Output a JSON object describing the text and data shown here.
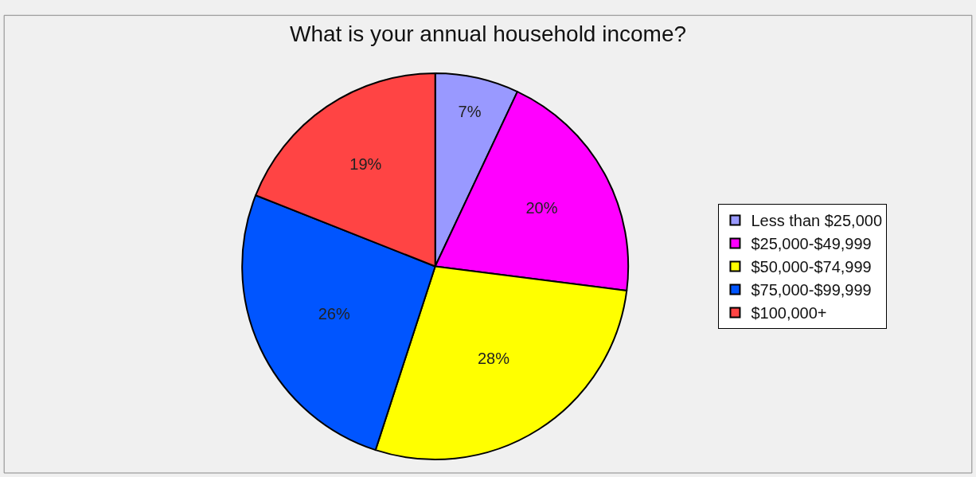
{
  "chart_data": {
    "type": "pie",
    "title": "What is your annual household income?",
    "categories": [
      "Less than $25,000",
      "$25,000-$49,999",
      "$50,000-$74,999",
      "$75,000-$99,999",
      "$100,000+"
    ],
    "values": [
      7,
      20,
      28,
      26,
      19
    ],
    "value_labels": [
      "7%",
      "20%",
      "28%",
      "26%",
      "19%"
    ],
    "colors": [
      "#9999ff",
      "#ff00ff",
      "#ffff00",
      "#0055ff",
      "#ff4444"
    ],
    "legend": "right"
  }
}
